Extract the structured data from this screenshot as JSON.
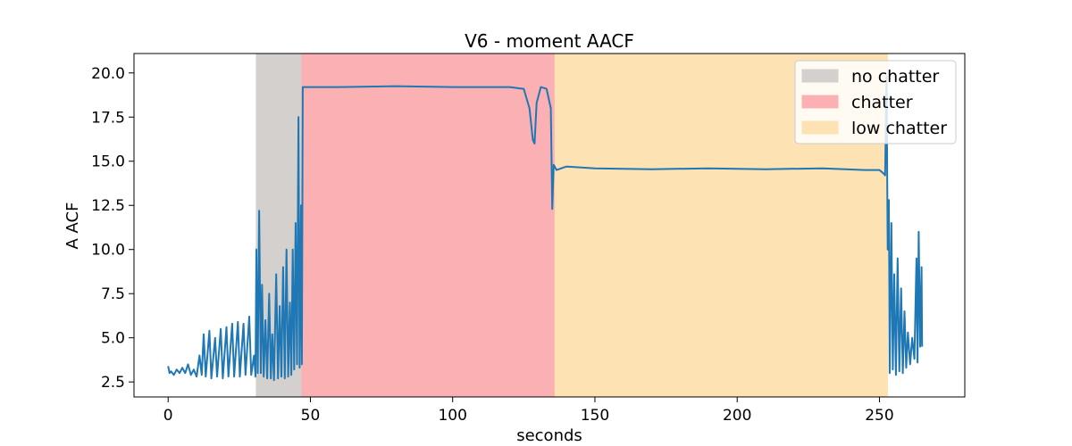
{
  "chart_data": {
    "type": "line",
    "title": "V6 - moment AACF",
    "xlabel": "seconds",
    "ylabel": "A ACF",
    "xlim": [
      -12,
      280
    ],
    "ylim": [
      1.65,
      21.1
    ],
    "xticks": [
      0,
      50,
      100,
      150,
      200,
      250
    ],
    "yticks": [
      2.5,
      5.0,
      7.5,
      10.0,
      12.5,
      15.0,
      17.5,
      20.0
    ],
    "xtick_labels": [
      "0",
      "50",
      "100",
      "150",
      "200",
      "250"
    ],
    "ytick_labels": [
      "2.5",
      "5.0",
      "7.5",
      "10.0",
      "12.5",
      "15.0",
      "17.5",
      "20.0"
    ],
    "grid": false,
    "legend_position": "top-right",
    "regions": [
      {
        "label": "no chatter",
        "x_start": 31,
        "x_end": 47,
        "color": "#d4d0cd"
      },
      {
        "label": "chatter",
        "x_start": 47,
        "x_end": 136,
        "color": "#fbb1b3"
      },
      {
        "label": "low chatter",
        "x_start": 136,
        "x_end": 253,
        "color": "#fde2b4"
      }
    ],
    "series": [
      {
        "color": "#1f77b4",
        "points": [
          [
            0,
            3.4
          ],
          [
            0.5,
            3.0
          ],
          [
            1,
            3.1
          ],
          [
            2,
            2.9
          ],
          [
            3,
            3.2
          ],
          [
            4,
            3.0
          ],
          [
            5,
            3.3
          ],
          [
            6,
            3.0
          ],
          [
            7,
            3.5
          ],
          [
            8,
            2.9
          ],
          [
            9,
            3.2
          ],
          [
            10,
            2.8
          ],
          [
            11,
            4.0
          ],
          [
            11.8,
            2.9
          ],
          [
            12.5,
            5.2
          ],
          [
            13.2,
            2.8
          ],
          [
            14.5,
            5.4
          ],
          [
            15.2,
            2.7
          ],
          [
            16.5,
            5.0
          ],
          [
            17.2,
            2.8
          ],
          [
            18.5,
            5.5
          ],
          [
            19.2,
            2.7
          ],
          [
            20.5,
            5.6
          ],
          [
            21.2,
            2.8
          ],
          [
            22.5,
            5.8
          ],
          [
            23.2,
            2.8
          ],
          [
            24.5,
            5.9
          ],
          [
            25.2,
            2.8
          ],
          [
            26.5,
            5.8
          ],
          [
            27.2,
            2.9
          ],
          [
            28.5,
            6.2
          ],
          [
            29.2,
            2.9
          ],
          [
            30.2,
            4.0
          ],
          [
            30.7,
            2.8
          ],
          [
            31.0,
            10.0
          ],
          [
            31.5,
            3.0
          ],
          [
            32.0,
            12.2
          ],
          [
            32.6,
            3.0
          ],
          [
            33.0,
            8.0
          ],
          [
            33.6,
            2.8
          ],
          [
            34.2,
            6.0
          ],
          [
            34.8,
            2.7
          ],
          [
            35.5,
            7.5
          ],
          [
            36.1,
            2.7
          ],
          [
            36.6,
            5.2
          ],
          [
            37.2,
            2.6
          ],
          [
            38.0,
            8.6
          ],
          [
            38.6,
            2.7
          ],
          [
            39.2,
            6.8
          ],
          [
            39.8,
            2.8
          ],
          [
            40.4,
            9.0
          ],
          [
            41.0,
            2.7
          ],
          [
            41.6,
            10.0
          ],
          [
            42.2,
            2.8
          ],
          [
            42.8,
            7.0
          ],
          [
            43.3,
            2.9
          ],
          [
            43.8,
            10.0
          ],
          [
            44.3,
            3.2
          ],
          [
            44.8,
            11.5
          ],
          [
            45.3,
            3.5
          ],
          [
            45.8,
            17.5
          ],
          [
            46.2,
            3.3
          ],
          [
            46.7,
            12.5
          ],
          [
            47.0,
            3.5
          ],
          [
            47.3,
            19.2
          ],
          [
            60,
            19.2
          ],
          [
            80,
            19.25
          ],
          [
            100,
            19.2
          ],
          [
            120,
            19.2
          ],
          [
            125,
            19.1
          ],
          [
            127,
            18.0
          ],
          [
            128.2,
            16.2
          ],
          [
            128.8,
            16.0
          ],
          [
            129.5,
            18.3
          ],
          [
            131,
            19.2
          ],
          [
            133,
            19.1
          ],
          [
            134.5,
            18.0
          ],
          [
            135,
            12.3
          ],
          [
            135.5,
            14.8
          ],
          [
            136.5,
            14.5
          ],
          [
            140,
            14.7
          ],
          [
            150,
            14.6
          ],
          [
            170,
            14.55
          ],
          [
            190,
            14.6
          ],
          [
            210,
            14.55
          ],
          [
            230,
            14.6
          ],
          [
            245,
            14.5
          ],
          [
            250,
            14.5
          ],
          [
            251.5,
            14.3
          ],
          [
            252,
            14.2
          ],
          [
            252.5,
            19.8
          ],
          [
            252.9,
            10.0
          ],
          [
            253.3,
            12.8
          ],
          [
            253.6,
            3.0
          ],
          [
            254.2,
            11.5
          ],
          [
            254.7,
            3.2
          ],
          [
            255.2,
            8.6
          ],
          [
            255.8,
            2.9
          ],
          [
            256.4,
            9.5
          ],
          [
            257,
            3.1
          ],
          [
            257.6,
            7.8
          ],
          [
            258.2,
            3.0
          ],
          [
            258.8,
            6.5
          ],
          [
            259.4,
            3.3
          ],
          [
            260,
            5.3
          ],
          [
            260.8,
            3.5
          ],
          [
            261.5,
            5.0
          ],
          [
            262.3,
            3.8
          ],
          [
            263,
            9.5
          ],
          [
            263.4,
            3.6
          ],
          [
            263.8,
            11.0
          ],
          [
            264.3,
            4.5
          ],
          [
            264.8,
            9.0
          ],
          [
            265,
            4.5
          ]
        ]
      }
    ]
  }
}
